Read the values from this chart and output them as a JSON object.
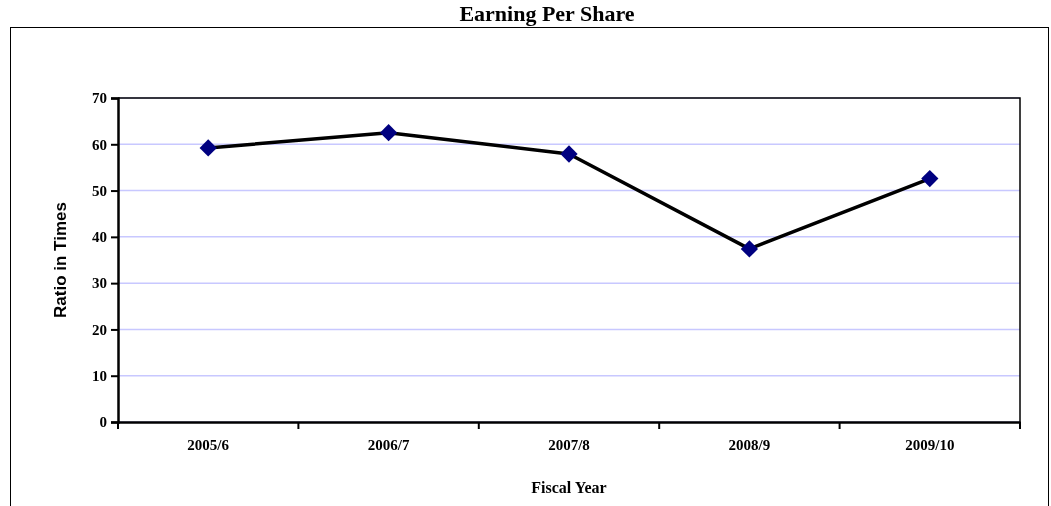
{
  "chart_data": {
    "type": "line",
    "title": "Earning Per Share",
    "xlabel": "Fiscal Year",
    "ylabel": "Ratio in Times",
    "categories": [
      "2005/6",
      "2006/7",
      "2007/8",
      "2008/9",
      "2009/10"
    ],
    "series": [
      {
        "color": "#000080",
        "values": [
          59.2,
          62.5,
          57.9,
          37.4,
          52.6
        ]
      }
    ],
    "ylim": [
      0,
      70
    ],
    "yticks": [
      0,
      10,
      20,
      30,
      40,
      50,
      60,
      70
    ],
    "grid": "y",
    "marker": "diamond",
    "line_style": "solid"
  }
}
